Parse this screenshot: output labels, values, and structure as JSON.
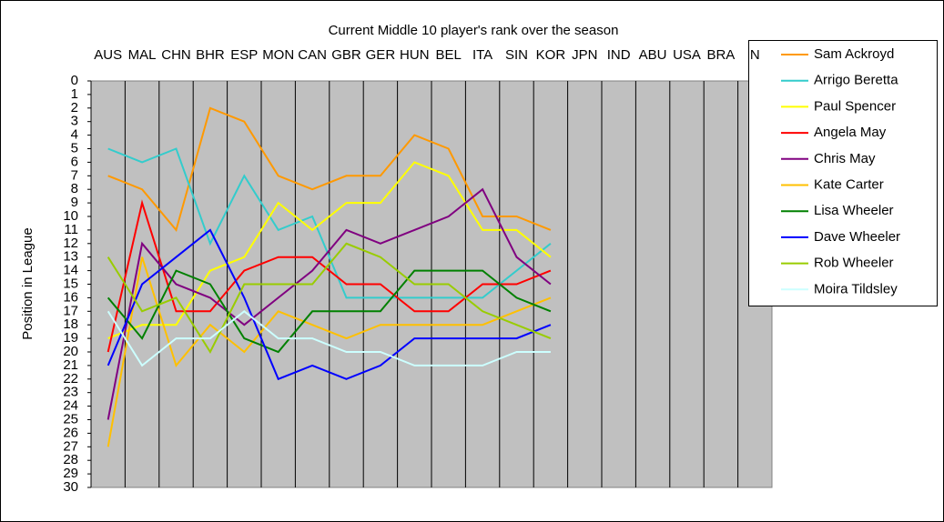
{
  "chart_data": {
    "type": "line",
    "title": "Current Middle 10 player's rank over the season",
    "y_label": "Position in League",
    "categories": [
      "AUS",
      "MAL",
      "CHN",
      "BHR",
      "ESP",
      "MON",
      "CAN",
      "GBR",
      "GER",
      "HUN",
      "BEL",
      "ITA",
      "SIN",
      "KOR",
      "JPN",
      "IND",
      "ABU",
      "USA",
      "BRA",
      "N"
    ],
    "ylim": [
      0,
      30
    ],
    "y_inverted": true,
    "yticks": [
      0,
      1,
      2,
      3,
      4,
      5,
      6,
      7,
      8,
      9,
      10,
      11,
      12,
      13,
      14,
      15,
      16,
      17,
      18,
      19,
      20,
      21,
      22,
      23,
      24,
      25,
      26,
      27,
      28,
      29,
      30
    ],
    "legend": "right",
    "series": [
      {
        "name": "Sam Ackroyd",
        "color": "#ff9900",
        "values": [
          7,
          8,
          11,
          2,
          3,
          7,
          8,
          7,
          7,
          4,
          5,
          10,
          10,
          11,
          null,
          null,
          null,
          null,
          null,
          null
        ]
      },
      {
        "name": "Arrigo Beretta",
        "color": "#33cccc",
        "values": [
          5,
          6,
          5,
          12,
          7,
          11,
          10,
          16,
          16,
          16,
          16,
          16,
          14,
          12,
          null,
          null,
          null,
          null,
          null,
          null
        ]
      },
      {
        "name": "Paul Spencer",
        "color": "#ffff00",
        "values": [
          19,
          18,
          18,
          14,
          13,
          9,
          11,
          9,
          9,
          6,
          7,
          11,
          11,
          13,
          null,
          null,
          null,
          null,
          null,
          null
        ]
      },
      {
        "name": "Angela May",
        "color": "#ff0000",
        "values": [
          20,
          9,
          17,
          17,
          14,
          13,
          13,
          15,
          15,
          17,
          17,
          15,
          15,
          14,
          null,
          null,
          null,
          null,
          null,
          null
        ]
      },
      {
        "name": "Chris May",
        "color": "#800080",
        "values": [
          25,
          12,
          15,
          16,
          18,
          16,
          14,
          11,
          12,
          11,
          10,
          8,
          13,
          15,
          null,
          null,
          null,
          null,
          null,
          null
        ]
      },
      {
        "name": "Kate Carter",
        "color": "#ffc000",
        "values": [
          27,
          13,
          21,
          18,
          20,
          17,
          18,
          19,
          18,
          18,
          18,
          18,
          17,
          16,
          null,
          null,
          null,
          null,
          null,
          null
        ]
      },
      {
        "name": "Lisa Wheeler",
        "color": "#008000",
        "values": [
          16,
          19,
          14,
          15,
          19,
          20,
          17,
          17,
          17,
          14,
          14,
          14,
          16,
          17,
          null,
          null,
          null,
          null,
          null,
          null
        ]
      },
      {
        "name": "Dave Wheeler",
        "color": "#0000ff",
        "values": [
          21,
          15,
          13,
          11,
          16,
          22,
          21,
          22,
          21,
          19,
          19,
          19,
          19,
          18,
          null,
          null,
          null,
          null,
          null,
          null
        ]
      },
      {
        "name": "Rob Wheeler",
        "color": "#99cc00",
        "values": [
          13,
          17,
          16,
          20,
          15,
          15,
          15,
          12,
          13,
          15,
          15,
          17,
          18,
          19,
          null,
          null,
          null,
          null,
          null,
          null
        ]
      },
      {
        "name": "Moira Tildsley",
        "color": "#ccffff",
        "values": [
          17,
          21,
          19,
          19,
          17,
          19,
          19,
          20,
          20,
          21,
          21,
          21,
          20,
          20,
          null,
          null,
          null,
          null,
          null,
          null
        ]
      }
    ]
  }
}
